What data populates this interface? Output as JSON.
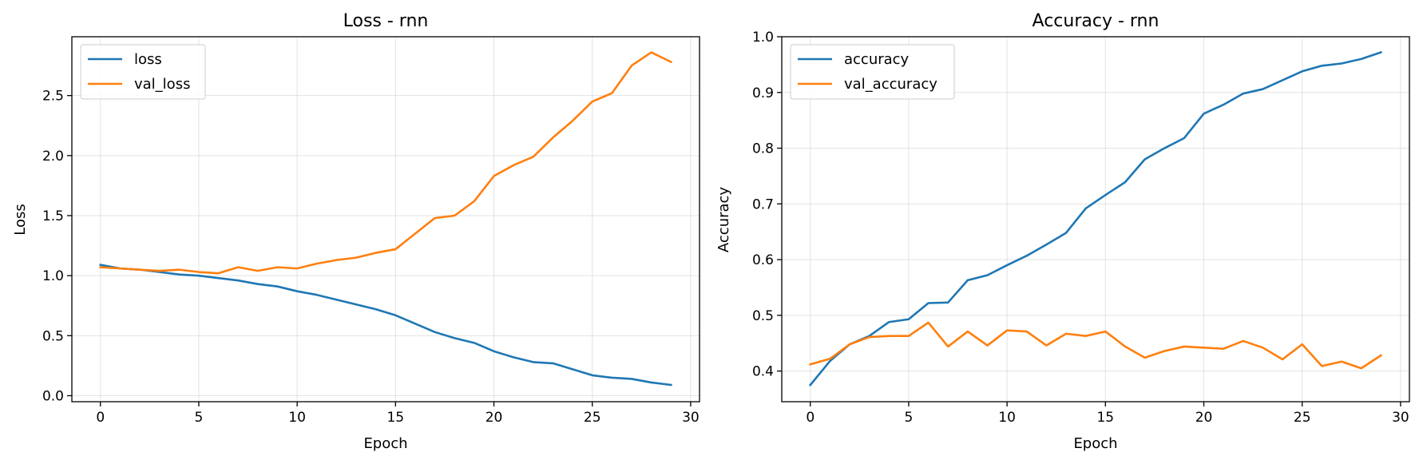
{
  "chart_data": [
    {
      "type": "line",
      "title": "Loss - rnn",
      "xlabel": "Epoch",
      "ylabel": "Loss",
      "xlim": [
        -1.45,
        30.45
      ],
      "ylim": [
        -0.05,
        2.99
      ],
      "xticks": [
        0,
        5,
        10,
        15,
        20,
        25,
        30
      ],
      "yticks": [
        0.0,
        0.5,
        1.0,
        1.5,
        2.0,
        2.5
      ],
      "ytick_labels": [
        "0.0",
        "0.5",
        "1.0",
        "1.5",
        "2.0",
        "2.5"
      ],
      "grid": true,
      "legend_position": "top-left",
      "x": [
        0,
        1,
        2,
        3,
        4,
        5,
        6,
        7,
        8,
        9,
        10,
        11,
        12,
        13,
        14,
        15,
        16,
        17,
        18,
        19,
        20,
        21,
        22,
        23,
        24,
        25,
        26,
        27,
        28,
        29
      ],
      "series": [
        {
          "name": "loss",
          "color": "#1f77b4",
          "values": [
            1.09,
            1.06,
            1.05,
            1.03,
            1.01,
            1.0,
            0.98,
            0.96,
            0.93,
            0.91,
            0.87,
            0.84,
            0.8,
            0.76,
            0.72,
            0.67,
            0.6,
            0.53,
            0.48,
            0.44,
            0.37,
            0.32,
            0.28,
            0.27,
            0.22,
            0.17,
            0.15,
            0.14,
            0.11,
            0.09
          ]
        },
        {
          "name": "val_loss",
          "color": "#ff7f0e",
          "values": [
            1.07,
            1.06,
            1.05,
            1.04,
            1.05,
            1.03,
            1.02,
            1.07,
            1.04,
            1.07,
            1.06,
            1.1,
            1.13,
            1.15,
            1.19,
            1.22,
            1.35,
            1.48,
            1.5,
            1.62,
            1.83,
            1.92,
            1.99,
            2.15,
            2.29,
            2.45,
            2.52,
            2.75,
            2.86,
            2.78
          ]
        }
      ]
    },
    {
      "type": "line",
      "title": "Accuracy - rnn",
      "xlabel": "Epoch",
      "ylabel": "Accuracy",
      "xlim": [
        -1.45,
        30.45
      ],
      "ylim": [
        0.345,
        1.0
      ],
      "xticks": [
        0,
        5,
        10,
        15,
        20,
        25,
        30
      ],
      "yticks": [
        0.4,
        0.5,
        0.6,
        0.7,
        0.8,
        0.9,
        1.0
      ],
      "ytick_labels": [
        "0.4",
        "0.5",
        "0.6",
        "0.7",
        "0.8",
        "0.9",
        "1.0"
      ],
      "grid": true,
      "legend_position": "top-left",
      "x": [
        0,
        1,
        2,
        3,
        4,
        5,
        6,
        7,
        8,
        9,
        10,
        11,
        12,
        13,
        14,
        15,
        16,
        17,
        18,
        19,
        20,
        21,
        22,
        23,
        24,
        25,
        26,
        27,
        28,
        29
      ],
      "series": [
        {
          "name": "accuracy",
          "color": "#1f77b4",
          "values": [
            0.375,
            0.418,
            0.448,
            0.463,
            0.488,
            0.493,
            0.522,
            0.523,
            0.563,
            0.572,
            0.59,
            0.607,
            0.627,
            0.648,
            0.692,
            0.716,
            0.739,
            0.78,
            0.8,
            0.818,
            0.862,
            0.878,
            0.898,
            0.906,
            0.922,
            0.938,
            0.948,
            0.952,
            0.96,
            0.972
          ]
        },
        {
          "name": "val_accuracy",
          "color": "#ff7f0e",
          "values": [
            0.412,
            0.422,
            0.448,
            0.461,
            0.463,
            0.463,
            0.487,
            0.444,
            0.471,
            0.446,
            0.473,
            0.471,
            0.446,
            0.467,
            0.463,
            0.471,
            0.444,
            0.424,
            0.436,
            0.444,
            0.442,
            0.44,
            0.454,
            0.442,
            0.421,
            0.448,
            0.409,
            0.417,
            0.405,
            0.428
          ]
        }
      ]
    }
  ]
}
